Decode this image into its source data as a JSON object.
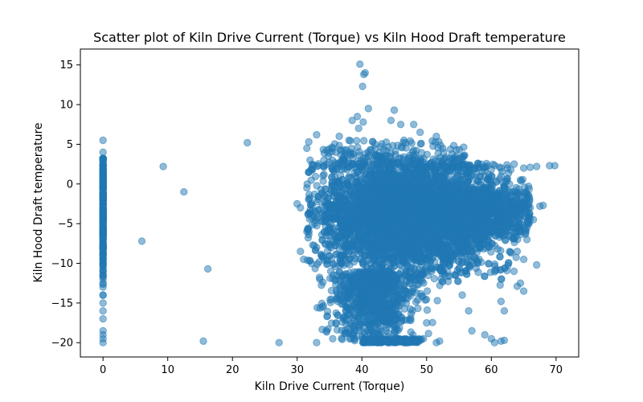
{
  "chart_data": {
    "type": "scatter",
    "title": "Scatter plot of Kiln Drive Current (Torque) vs Kiln Hood Draft temperature",
    "xlabel": "Kiln Drive Current (Torque)",
    "ylabel": "Kiln Hood Draft temperature",
    "xlim": [
      -3.5,
      73.5
    ],
    "ylim": [
      -21.8,
      17
    ],
    "xticks": [
      0,
      10,
      20,
      30,
      40,
      50,
      60,
      70
    ],
    "yticks": [
      -20,
      -15,
      -10,
      -5,
      0,
      5,
      10,
      15
    ],
    "grid": false,
    "legend": "none",
    "marker_color": "#1f77b4",
    "marker_alpha": 0.5,
    "series": [
      {
        "points": [
          [
            0,
            5.5
          ],
          [
            0,
            4.0
          ],
          [
            0,
            3.0
          ],
          [
            0,
            2.5
          ],
          [
            0,
            2.0
          ],
          [
            0,
            1.5
          ],
          [
            0,
            1.0
          ],
          [
            0,
            0.5
          ],
          [
            0,
            0.0
          ],
          [
            0,
            -0.5
          ],
          [
            0,
            -1.0
          ],
          [
            0,
            -1.5
          ],
          [
            0,
            -2.0
          ],
          [
            0,
            -2.5
          ],
          [
            0,
            -3.0
          ],
          [
            0,
            -3.5
          ],
          [
            0,
            -4.0
          ],
          [
            0,
            -4.5
          ],
          [
            0,
            -5.0
          ],
          [
            0,
            -5.5
          ],
          [
            0,
            -6.0
          ],
          [
            0,
            -6.5
          ],
          [
            0,
            -7.0
          ],
          [
            0,
            -7.5
          ],
          [
            0,
            -8.0
          ],
          [
            0,
            -9.0
          ],
          [
            0,
            -10.0
          ],
          [
            0,
            -11.0
          ],
          [
            0,
            -12.0
          ],
          [
            0,
            -12.5
          ],
          [
            0,
            -13.0
          ],
          [
            0,
            -14.0
          ],
          [
            0,
            -15.0
          ],
          [
            0,
            -16.0
          ],
          [
            0,
            -17.0
          ],
          [
            0,
            -18.5
          ],
          [
            0,
            -19.0
          ],
          [
            0,
            -19.5
          ],
          [
            0,
            -20.0
          ],
          [
            9.3,
            2.2
          ],
          [
            12.5,
            -1.0
          ],
          [
            6.0,
            -7.2
          ],
          [
            16.2,
            -10.7
          ],
          [
            22.3,
            5.2
          ],
          [
            15.5,
            -19.8
          ],
          [
            27.2,
            -20.0
          ],
          [
            39.7,
            15.1
          ],
          [
            40.5,
            14.0
          ],
          [
            40.3,
            13.8
          ],
          [
            40.1,
            12.3
          ],
          [
            41.0,
            9.5
          ],
          [
            45.0,
            9.3
          ],
          [
            38.5,
            8.0
          ],
          [
            39.3,
            8.5
          ],
          [
            40.2,
            7.8
          ],
          [
            39.5,
            7.0
          ],
          [
            44.5,
            8.0
          ],
          [
            46.0,
            7.5
          ],
          [
            48.0,
            7.5
          ],
          [
            49.0,
            6.5
          ],
          [
            51.5,
            6.0
          ],
          [
            36.5,
            6.0
          ],
          [
            33.0,
            6.2
          ],
          [
            31.8,
            5.3
          ],
          [
            31.5,
            4.5
          ],
          [
            35.5,
            4.5
          ],
          [
            38.0,
            5.5
          ],
          [
            42.0,
            5.0
          ],
          [
            46.5,
            5.5
          ],
          [
            52.5,
            4.5
          ],
          [
            54.5,
            3.5
          ],
          [
            56.0,
            2.5
          ],
          [
            58.0,
            2.0
          ],
          [
            60.0,
            1.8
          ],
          [
            61.5,
            2.0
          ],
          [
            62.5,
            2.0
          ],
          [
            63.0,
            1.8
          ],
          [
            65.0,
            2.0
          ],
          [
            66.0,
            2.1
          ],
          [
            67.0,
            2.2
          ],
          [
            69.0,
            2.3
          ],
          [
            69.8,
            2.3
          ],
          [
            64.5,
            0.5
          ],
          [
            65.0,
            -2.5
          ],
          [
            66.0,
            -3.0
          ],
          [
            67.5,
            -2.8
          ],
          [
            68.0,
            -2.7
          ],
          [
            66.5,
            -4.5
          ],
          [
            64.5,
            -6.0
          ],
          [
            65.5,
            -5.0
          ],
          [
            64.0,
            -8.5
          ],
          [
            65.5,
            -7.0
          ],
          [
            67.0,
            -10.2
          ],
          [
            65.0,
            -9.5
          ],
          [
            63.5,
            -11.0
          ],
          [
            64.5,
            -12.5
          ],
          [
            65.0,
            -13.5
          ],
          [
            64.0,
            -12.9
          ],
          [
            61.5,
            -14.8
          ],
          [
            62.0,
            -16.0
          ],
          [
            59.0,
            -19.0
          ],
          [
            60.0,
            -19.5
          ],
          [
            60.5,
            -20.0
          ],
          [
            61.5,
            -19.8
          ],
          [
            62.0,
            -19.7
          ],
          [
            57.0,
            -18.5
          ],
          [
            56.5,
            -16.0
          ],
          [
            55.5,
            -14.0
          ],
          [
            52.0,
            -19.8
          ],
          [
            51.5,
            -20.0
          ],
          [
            50.0,
            -17.5
          ],
          [
            49.5,
            -19.5
          ],
          [
            47.0,
            -20.0
          ],
          [
            45.0,
            -20.0
          ],
          [
            43.0,
            -20.0
          ],
          [
            41.0,
            -20.0
          ],
          [
            38.5,
            -19.0
          ],
          [
            35.5,
            -19.5
          ],
          [
            33.0,
            -20.0
          ],
          [
            34.5,
            -18.5
          ],
          [
            36.0,
            -17.5
          ],
          [
            37.5,
            -16.0
          ],
          [
            36.0,
            -14.5
          ],
          [
            33.5,
            -12.0
          ],
          [
            31.0,
            -9.5
          ],
          [
            30.5,
            -8.5
          ],
          [
            31.5,
            -6.0
          ],
          [
            30.0,
            -2.5
          ],
          [
            30.5,
            -3.0
          ],
          [
            31.5,
            -0.5
          ],
          [
            31.8,
            1.5
          ],
          [
            32.0,
            3.0
          ]
        ]
      }
    ]
  }
}
